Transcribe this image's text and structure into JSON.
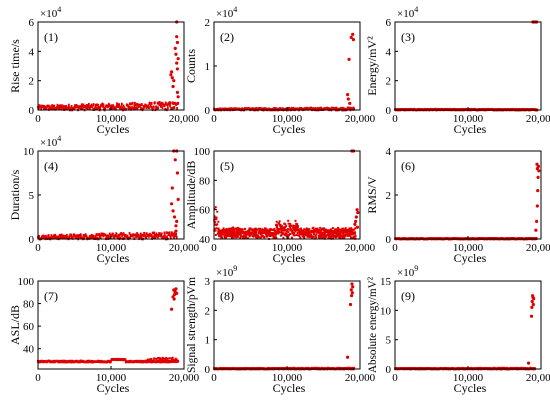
{
  "figure": {
    "point_color": "#e00000",
    "axis_color": "#000000"
  },
  "chart_data": [
    {
      "type": "scatter",
      "panel_label": "(1)",
      "xlabel": "Cycles",
      "ylabel": "Rise time/s",
      "y_multiplier": "×10",
      "y_multiplier_exp": "4",
      "xlim": [
        0,
        20000
      ],
      "ylim": [
        0,
        6
      ],
      "xticks": [
        0,
        10000,
        20000
      ],
      "xtick_labels": [
        "0",
        "10,000",
        "20,000"
      ],
      "yticks": [
        0,
        2,
        4,
        6
      ],
      "ytick_labels": [
        "0",
        "2",
        "4",
        "6"
      ],
      "grid": false,
      "base_band": {
        "x_range": [
          0,
          19200
        ],
        "y_low": 0.0,
        "y_high": 0.3,
        "y_high_end": 0.55
      },
      "outliers_x": [
        18200,
        18300,
        18400,
        18500,
        18600,
        18800,
        18900,
        19000,
        19000,
        19000,
        19100,
        19100,
        19100,
        19200,
        19200
      ],
      "outliers_y": [
        2.4,
        2.6,
        2.2,
        1.6,
        2.0,
        4.2,
        3.8,
        6.0,
        5.0,
        3.2,
        4.6,
        2.8,
        1.2,
        3.5,
        0.9
      ]
    },
    {
      "type": "scatter",
      "panel_label": "(2)",
      "xlabel": "Cycles",
      "ylabel": "Counts",
      "y_multiplier": "×10",
      "y_multiplier_exp": "4",
      "xlim": [
        0,
        20000
      ],
      "ylim": [
        0,
        2
      ],
      "xticks": [
        0,
        10000,
        20000
      ],
      "xtick_labels": [
        "0",
        "10,000",
        "20,000"
      ],
      "yticks": [
        0,
        1,
        2
      ],
      "ytick_labels": [
        "0",
        "1",
        "2"
      ],
      "grid": false,
      "base_band": {
        "x_range": [
          0,
          19200
        ],
        "y_low": 0.0,
        "y_high": 0.03,
        "y_high_end": 0.05
      },
      "outliers_x": [
        18300,
        18400,
        18500,
        18600,
        18800,
        19000,
        19100
      ],
      "outliers_y": [
        0.35,
        0.25,
        1.15,
        0.15,
        1.65,
        1.72,
        1.6
      ]
    },
    {
      "type": "scatter",
      "panel_label": "(3)",
      "xlabel": "Cycles",
      "ylabel": "Energy/mV²",
      "y_multiplier": "×10",
      "y_multiplier_exp": "4",
      "xlim": [
        0,
        20000
      ],
      "ylim": [
        0,
        6
      ],
      "xticks": [
        0,
        10000,
        20000
      ],
      "xtick_labels": [
        "0",
        "10,000",
        "20,000"
      ],
      "yticks": [
        0,
        2,
        4,
        6
      ],
      "ytick_labels": [
        "0",
        "2",
        "4",
        "6"
      ],
      "grid": false,
      "base_band": {
        "x_range": [
          0,
          19500
        ],
        "y_low": 0.0,
        "y_high": 0.05,
        "y_high_end": 0.05
      },
      "outliers_x": [
        18900,
        19000,
        19200,
        19400
      ],
      "outliers_y": [
        6.0,
        6.0,
        6.0,
        6.0
      ]
    },
    {
      "type": "scatter",
      "panel_label": "(4)",
      "xlabel": "Cycles",
      "ylabel": "Duration/s",
      "y_multiplier": "×10",
      "y_multiplier_exp": "4",
      "xlim": [
        0,
        20000
      ],
      "ylim": [
        0,
        10
      ],
      "xticks": [
        0,
        10000,
        20000
      ],
      "xtick_labels": [
        "0",
        "10,000",
        "20,000"
      ],
      "yticks": [
        0,
        5,
        10
      ],
      "ytick_labels": [
        "0",
        "5",
        "10"
      ],
      "grid": false,
      "base_band": {
        "x_range": [
          0,
          19000
        ],
        "y_low": 0.0,
        "y_high": 0.4,
        "y_high_end": 0.8
      },
      "outliers_x": [
        18300,
        18400,
        18500,
        18600,
        18700,
        18800,
        18900,
        19000,
        19100,
        19200,
        19000,
        18900
      ],
      "outliers_y": [
        4.0,
        5.8,
        3.2,
        10.0,
        2.5,
        9.0,
        1.5,
        10.0,
        7.5,
        4.5,
        2.0,
        0.9
      ]
    },
    {
      "type": "scatter",
      "panel_label": "(5)",
      "xlabel": "Cycles",
      "ylabel": "Amplitude/dB",
      "y_multiplier": "",
      "y_multiplier_exp": "",
      "xlim": [
        0,
        20000
      ],
      "ylim": [
        40,
        100
      ],
      "xticks": [
        0,
        10000,
        20000
      ],
      "xtick_labels": [
        "0",
        "10,000",
        "20,000"
      ],
      "yticks": [
        40,
        60,
        80,
        100
      ],
      "ytick_labels": [
        "40",
        "60",
        "80",
        "100"
      ],
      "grid": false,
      "amplitude_band": true,
      "outliers_x": [
        18900,
        19100,
        19600,
        19500,
        19400,
        19300,
        19700,
        19650
      ],
      "outliers_y": [
        100,
        100,
        60,
        55,
        52,
        50,
        58,
        48
      ]
    },
    {
      "type": "scatter",
      "panel_label": "(6)",
      "xlabel": "Cycles",
      "ylabel": "RMS/V",
      "y_multiplier": "",
      "y_multiplier_exp": "",
      "xlim": [
        0,
        20000
      ],
      "ylim": [
        0,
        4
      ],
      "xticks": [
        0,
        10000,
        20000
      ],
      "xtick_labels": [
        "0",
        "10,000",
        "20,000"
      ],
      "yticks": [
        0,
        2,
        4
      ],
      "ytick_labels": [
        "0",
        "2",
        "4"
      ],
      "grid": false,
      "base_band": {
        "x_range": [
          0,
          19400
        ],
        "y_low": 0.0,
        "y_high": 0.02,
        "y_high_end": 0.03
      },
      "outliers_x": [
        19300,
        19400,
        19500,
        19550,
        19600,
        19500,
        19450,
        19650,
        19700
      ],
      "outliers_y": [
        0.4,
        0.8,
        1.5,
        2.2,
        2.8,
        3.2,
        3.4,
        3.3,
        3.1
      ]
    },
    {
      "type": "scatter",
      "panel_label": "(7)",
      "xlabel": "Cycles",
      "ylabel": "ASL/dB",
      "y_multiplier": "",
      "y_multiplier_exp": "",
      "xlim": [
        0,
        20000
      ],
      "ylim": [
        22,
        100
      ],
      "xticks": [
        0,
        10000,
        20000
      ],
      "xtick_labels": [
        "0",
        "10,000",
        "20,000"
      ],
      "yticks": [
        40,
        60,
        80,
        100
      ],
      "ytick_labels": [
        "40",
        "60",
        "80",
        "100"
      ],
      "grid": false,
      "asl_band": true,
      "outliers_x": [
        18300,
        18500,
        18600,
        18700,
        18800,
        18900,
        19000,
        18650,
        18750
      ],
      "outliers_y": [
        75,
        86,
        92,
        88,
        90,
        93,
        89,
        84,
        91
      ]
    },
    {
      "type": "scatter",
      "panel_label": "(8)",
      "xlabel": "Cycles",
      "ylabel": "Signal strength/pVm",
      "y_multiplier": "×10",
      "y_multiplier_exp": "9",
      "xlim": [
        0,
        20000
      ],
      "ylim": [
        0,
        3
      ],
      "xticks": [
        0,
        10000,
        20000
      ],
      "xtick_labels": [
        "0",
        "10,000",
        "20,000"
      ],
      "yticks": [
        0,
        1,
        2,
        3
      ],
      "ytick_labels": [
        "0",
        "1",
        "2",
        "3"
      ],
      "grid": false,
      "base_band": {
        "x_range": [
          0,
          19200
        ],
        "y_low": 0.0,
        "y_high": 0.02,
        "y_high_end": 0.03
      },
      "outliers_x": [
        18300,
        18700,
        18800,
        18900,
        19000,
        18950,
        18850
      ],
      "outliers_y": [
        0.4,
        2.2,
        2.7,
        2.9,
        2.8,
        2.6,
        2.5
      ]
    },
    {
      "type": "scatter",
      "panel_label": "(9)",
      "xlabel": "Cycles",
      "ylabel": "Absolute energy/mV²",
      "y_multiplier": "×10",
      "y_multiplier_exp": "9",
      "xlim": [
        0,
        20000
      ],
      "ylim": [
        0,
        15
      ],
      "xticks": [
        0,
        10000,
        20000
      ],
      "xtick_labels": [
        "0",
        "10,000",
        "20,000"
      ],
      "yticks": [
        0,
        5,
        10,
        15
      ],
      "ytick_labels": [
        "0",
        "5",
        "10",
        "15"
      ],
      "grid": false,
      "base_band": {
        "x_range": [
          0,
          19200
        ],
        "y_low": 0.0,
        "y_high": 0.1,
        "y_high_end": 0.15
      },
      "outliers_x": [
        18300,
        18700,
        18800,
        18900,
        19000,
        18950,
        18850,
        18750
      ],
      "outliers_y": [
        1.0,
        9.0,
        11.5,
        12.2,
        12.0,
        11.0,
        12.5,
        10.5
      ]
    }
  ]
}
